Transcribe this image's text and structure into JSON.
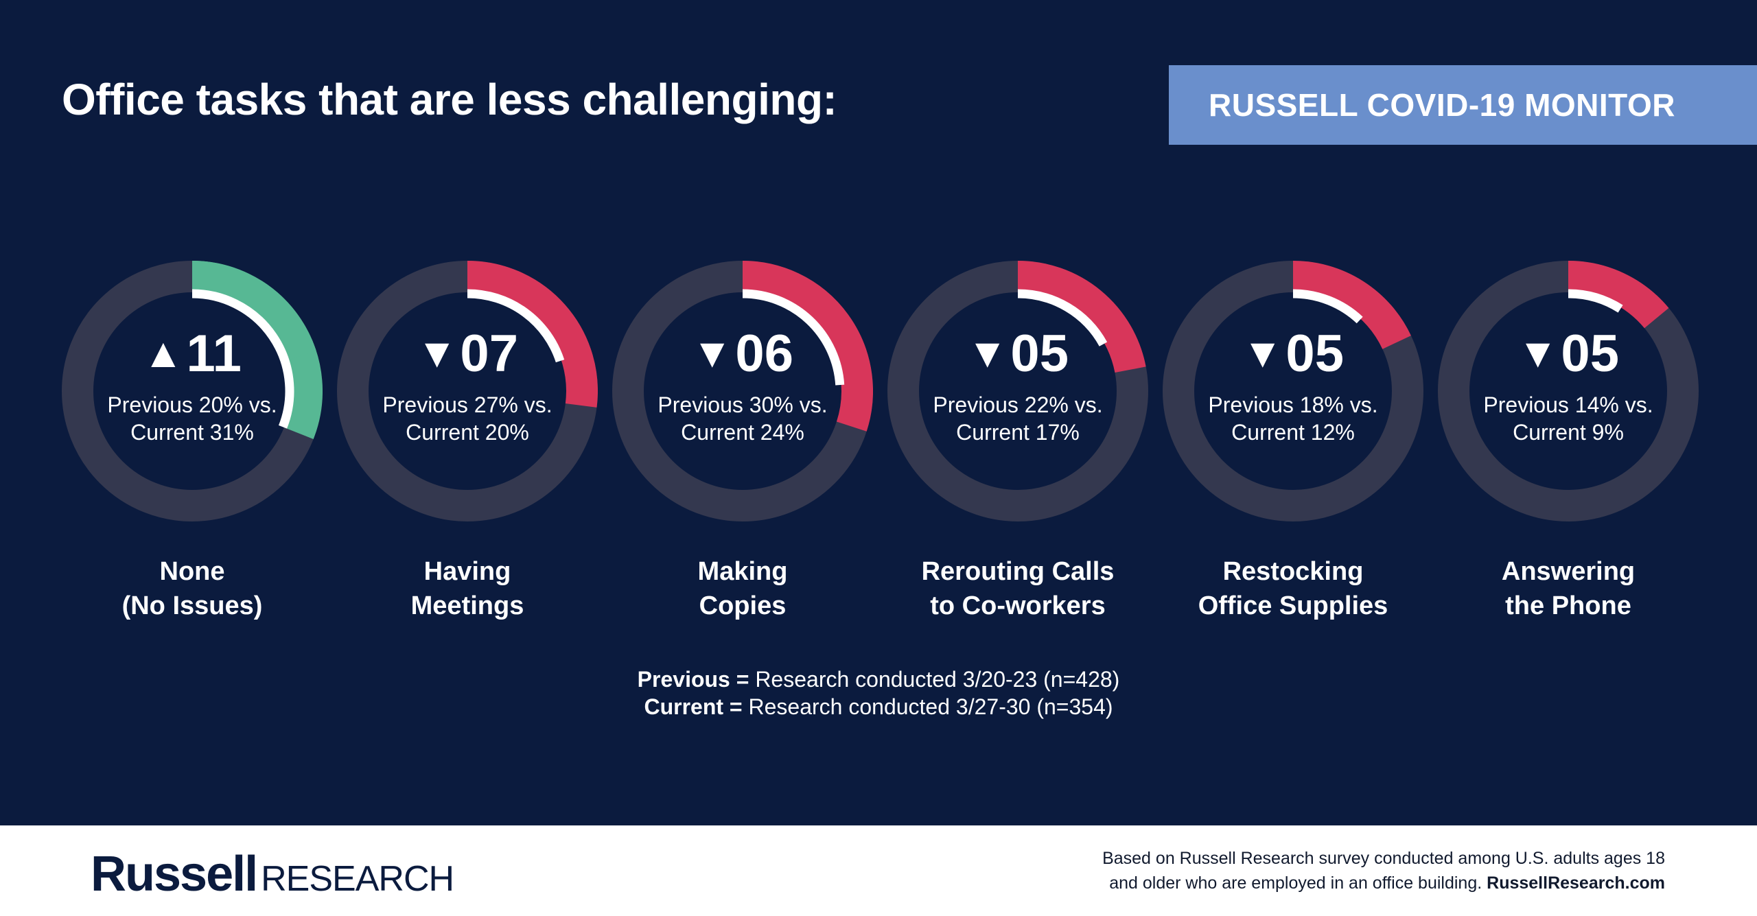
{
  "header": {
    "title": "Office tasks that are less challenging:",
    "badge": "RUSSELL COVID-19 MONITOR"
  },
  "colors": {
    "background": "#0b1b3e",
    "track": "#34384f",
    "increase": "#57b894",
    "decrease": "#d8365a",
    "current": "#ffffff",
    "badge": "#6a8fcc"
  },
  "chart_data": {
    "type": "donut-gauges",
    "unit": "%",
    "items": [
      {
        "category": "None (No Issues)",
        "label_line1": "None",
        "label_line2": "(No Issues)",
        "previous": 20,
        "current": 31,
        "change_text": "11",
        "direction": "up",
        "compare_line1": "Previous 20% vs.",
        "compare_line2": "Current 31%"
      },
      {
        "category": "Having Meetings",
        "label_line1": "Having",
        "label_line2": "Meetings",
        "previous": 27,
        "current": 20,
        "change_text": "07",
        "direction": "down",
        "compare_line1": "Previous 27% vs.",
        "compare_line2": "Current 20%"
      },
      {
        "category": "Making Copies",
        "label_line1": "Making",
        "label_line2": "Copies",
        "previous": 30,
        "current": 24,
        "change_text": "06",
        "direction": "down",
        "compare_line1": "Previous 30% vs.",
        "compare_line2": "Current 24%"
      },
      {
        "category": "Rerouting Calls to Co-workers",
        "label_line1": "Rerouting Calls",
        "label_line2": "to Co-workers",
        "previous": 22,
        "current": 17,
        "change_text": "05",
        "direction": "down",
        "compare_line1": "Previous 22% vs.",
        "compare_line2": "Current 17%"
      },
      {
        "category": "Restocking Office Supplies",
        "label_line1": "Restocking",
        "label_line2": "Office Supplies",
        "previous": 18,
        "current": 12,
        "change_text": "05",
        "direction": "down",
        "compare_line1": "Previous 18% vs.",
        "compare_line2": "Current 12%"
      },
      {
        "category": "Answering the Phone",
        "label_line1": "Answering",
        "label_line2": "the Phone",
        "previous": 14,
        "current": 9,
        "change_text": "05",
        "direction": "down",
        "compare_line1": "Previous 14% vs.",
        "compare_line2": "Current 9%"
      }
    ]
  },
  "legend": {
    "previous_key": "Previous =",
    "previous_text": "Research conducted 3/20-23 (n=428)",
    "current_key": "Current =",
    "current_text": "Research conducted 3/27-30 (n=354)"
  },
  "footer": {
    "logo_bold": "Russell",
    "logo_light": "RESEARCH",
    "note_line1": "Based on Russell Research survey conducted among U.S. adults ages 18",
    "note_line2": "and older who are employed in an office building.",
    "note_link": "RussellResearch.com"
  }
}
